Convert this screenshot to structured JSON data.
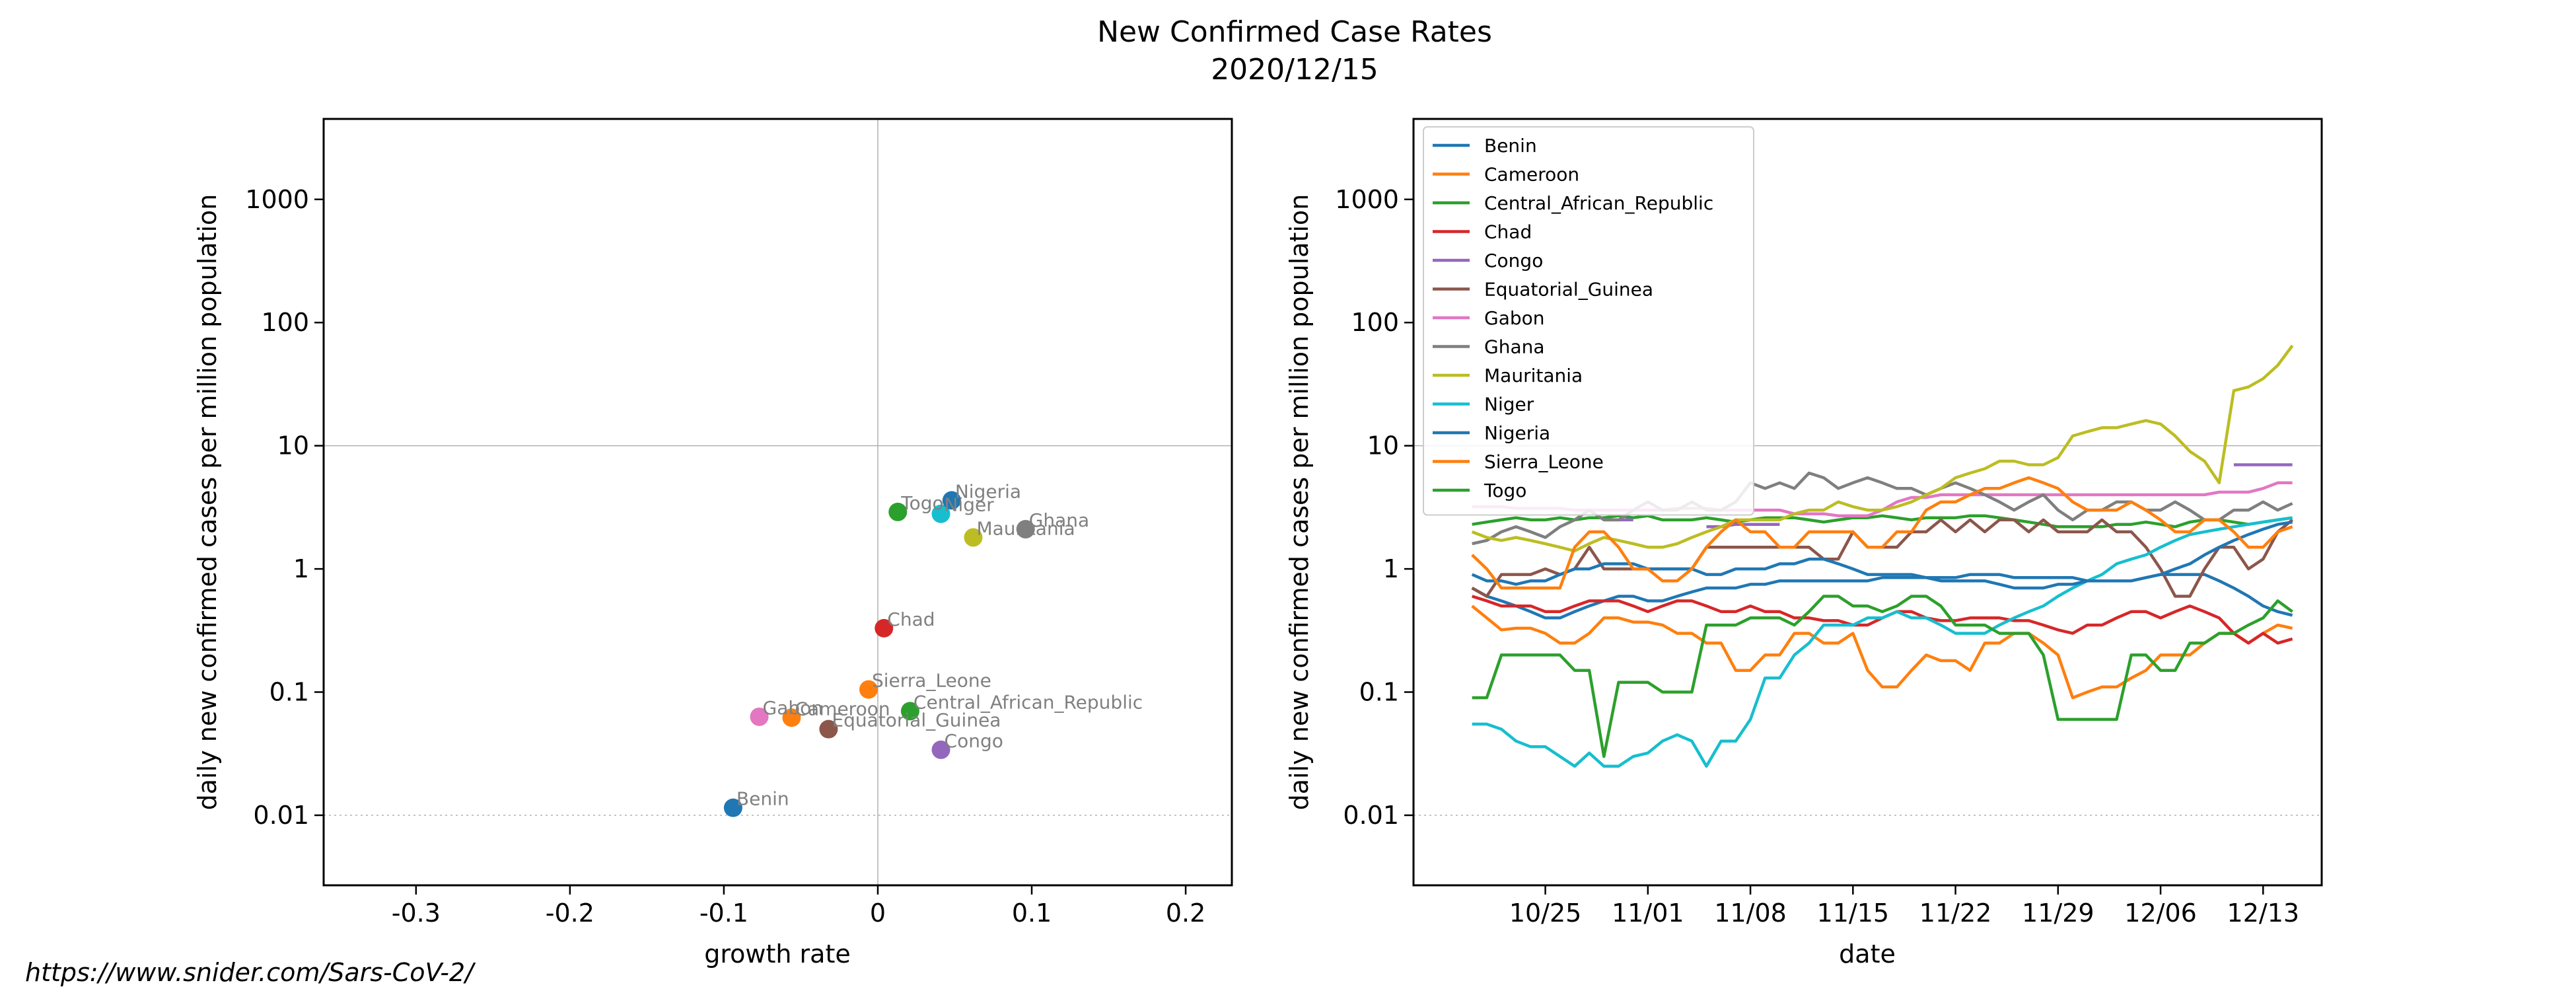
{
  "figure": {
    "title_line1": "New Confirmed Case Rates",
    "title_line2": "2020/12/15",
    "footer": "https://www.snider.com/Sars-CoV-2/"
  },
  "chart_data": [
    {
      "type": "scatter",
      "xlabel": "growth rate",
      "ylabel": "daily new confirmed cases per million population",
      "xlim": [
        -0.36,
        0.23
      ],
      "ylim": [
        0.0027,
        4500
      ],
      "yscale": "log",
      "xticks": [
        -0.3,
        -0.2,
        -0.1,
        0,
        0.1,
        0.2
      ],
      "xtick_labels": [
        "-0.3",
        "-0.2",
        "-0.1",
        "0",
        "0.1",
        "0.2"
      ],
      "yticks": [
        0.01,
        0.1,
        1,
        10,
        100,
        1000
      ],
      "ytick_labels": [
        "0.01",
        "0.1",
        "1",
        "10",
        "100",
        "1000"
      ],
      "reference_lines": {
        "x": 0,
        "y": 10,
        "y_dotted": 0.01
      },
      "points": [
        {
          "label": "Benin",
          "x": -0.094,
          "y": 0.0115,
          "color": "#1f77b4"
        },
        {
          "label": "Cameroon",
          "x": -0.056,
          "y": 0.062,
          "color": "#ff7f0e"
        },
        {
          "label": "Central_African_Republic",
          "x": 0.021,
          "y": 0.07,
          "color": "#2ca02c"
        },
        {
          "label": "Chad",
          "x": 0.004,
          "y": 0.33,
          "color": "#d62728"
        },
        {
          "label": "Congo",
          "x": 0.041,
          "y": 0.034,
          "color": "#9467bd"
        },
        {
          "label": "Equatorial_Guinea",
          "x": -0.032,
          "y": 0.05,
          "color": "#8c564b"
        },
        {
          "label": "Gabon",
          "x": -0.077,
          "y": 0.063,
          "color": "#e377c2"
        },
        {
          "label": "Ghana",
          "x": 0.096,
          "y": 2.1,
          "color": "#7f7f7f"
        },
        {
          "label": "Mauritania",
          "x": 0.062,
          "y": 1.8,
          "color": "#bcbd22"
        },
        {
          "label": "Niger",
          "x": 0.041,
          "y": 2.8,
          "color": "#17becf"
        },
        {
          "label": "Nigeria",
          "x": 0.048,
          "y": 3.6,
          "color": "#1f77b4"
        },
        {
          "label": "Sierra_Leone",
          "x": -0.006,
          "y": 0.105,
          "color": "#ff7f0e"
        },
        {
          "label": "Togo",
          "x": 0.013,
          "y": 2.9,
          "color": "#2ca02c"
        }
      ]
    },
    {
      "type": "line",
      "xlabel": "date",
      "ylabel": "daily new confirmed cases per million population",
      "x_start": "2020-10-20",
      "x_end": "2020-12-15",
      "xlim": [
        "2020-10-16",
        "2020-12-17"
      ],
      "ylim": [
        0.0027,
        4500
      ],
      "yscale": "log",
      "xticks": [
        "2020-10-25",
        "2020-11-01",
        "2020-11-08",
        "2020-11-15",
        "2020-11-22",
        "2020-11-29",
        "2020-12-06",
        "2020-12-13"
      ],
      "xtick_labels": [
        "10/25",
        "11/01",
        "11/08",
        "11/15",
        "11/22",
        "11/29",
        "12/06",
        "12/13"
      ],
      "yticks": [
        0.01,
        0.1,
        1,
        10,
        100,
        1000
      ],
      "ytick_labels": [
        "0.01",
        "0.1",
        "1",
        "10",
        "100",
        "1000"
      ],
      "reference_lines": {
        "y": 10,
        "y_dotted": 0.01
      },
      "legend": {
        "placement": "upper-left"
      },
      "series": [
        {
          "name": "Benin",
          "color": "#1f77b4",
          "values": [
            0.7,
            0.6,
            0.55,
            0.5,
            0.45,
            0.4,
            0.4,
            0.45,
            0.5,
            0.55,
            0.6,
            0.6,
            0.55,
            0.55,
            0.6,
            0.65,
            0.7,
            0.7,
            0.7,
            0.75,
            0.75,
            0.8,
            0.8,
            0.8,
            0.8,
            0.8,
            0.8,
            0.8,
            0.85,
            0.85,
            0.85,
            0.85,
            0.85,
            0.85,
            0.9,
            0.9,
            0.9,
            0.85,
            0.85,
            0.85,
            0.85,
            0.85,
            0.8,
            0.8,
            0.8,
            0.8,
            0.85,
            0.9,
            0.9,
            0.9,
            0.9,
            0.8,
            0.7,
            0.6,
            0.5,
            0.45,
            0.42
          ]
        },
        {
          "name": "Cameroon",
          "color": "#ff7f0e",
          "values": [
            0.5,
            0.4,
            0.32,
            0.33,
            0.33,
            0.3,
            0.25,
            0.25,
            0.3,
            0.4,
            0.4,
            0.37,
            0.37,
            0.35,
            0.3,
            0.3,
            0.25,
            0.25,
            0.15,
            0.15,
            0.2,
            0.2,
            0.3,
            0.3,
            0.25,
            0.25,
            0.3,
            0.15,
            0.11,
            0.11,
            0.15,
            0.2,
            0.18,
            0.18,
            0.15,
            0.25,
            0.25,
            0.3,
            0.3,
            0.25,
            0.2,
            0.09,
            0.1,
            0.11,
            0.11,
            0.13,
            0.15,
            0.2,
            0.2,
            0.2,
            0.25,
            0.3,
            0.3,
            0.25,
            0.3,
            0.35,
            0.33
          ]
        },
        {
          "name": "Central_African_Republic",
          "color": "#2ca02c",
          "values": [
            2.3,
            2.4,
            2.5,
            2.6,
            2.5,
            2.5,
            2.6,
            2.5,
            2.6,
            2.6,
            2.7,
            2.6,
            2.7,
            2.5,
            2.5,
            2.5,
            2.6,
            2.5,
            2.4,
            2.5,
            2.6,
            2.6,
            2.6,
            2.5,
            2.4,
            2.5,
            2.6,
            2.6,
            2.7,
            2.6,
            2.5,
            2.6,
            2.6,
            2.6,
            2.7,
            2.7,
            2.6,
            2.5,
            2.4,
            2.3,
            2.2,
            2.2,
            2.2,
            2.2,
            2.3,
            2.3,
            2.4,
            2.3,
            2.2,
            2.4,
            2.5,
            2.5,
            2.4,
            2.3,
            2.4,
            2.5,
            2.6
          ]
        },
        {
          "name": "Chad",
          "color": "#d62728",
          "values": [
            0.6,
            0.55,
            0.5,
            0.5,
            0.5,
            0.45,
            0.45,
            0.5,
            0.55,
            0.55,
            0.55,
            0.5,
            0.45,
            0.5,
            0.55,
            0.55,
            0.5,
            0.45,
            0.45,
            0.5,
            0.45,
            0.45,
            0.4,
            0.4,
            0.38,
            0.38,
            0.35,
            0.35,
            0.4,
            0.45,
            0.45,
            0.4,
            0.38,
            0.38,
            0.4,
            0.4,
            0.4,
            0.38,
            0.38,
            0.35,
            0.32,
            0.3,
            0.35,
            0.35,
            0.4,
            0.45,
            0.45,
            0.4,
            0.45,
            0.5,
            0.45,
            0.4,
            0.3,
            0.25,
            0.3,
            0.25,
            0.27
          ]
        },
        {
          "name": "Congo",
          "color": "#9467bd",
          "values": [
            null,
            null,
            null,
            null,
            null,
            null,
            null,
            null,
            null,
            2.5,
            2.5,
            2.5,
            null,
            null,
            null,
            null,
            2.2,
            2.2,
            2.3,
            2.3,
            2.3,
            2.3,
            null,
            null,
            null,
            null,
            null,
            null,
            null,
            null,
            null,
            null,
            null,
            null,
            null,
            null,
            null,
            null,
            null,
            null,
            null,
            null,
            null,
            null,
            null,
            null,
            null,
            null,
            null,
            null,
            null,
            null,
            7.0,
            7.0,
            7.0,
            7.0,
            7.0
          ]
        },
        {
          "name": "Equatorial_Guinea",
          "color": "#8c564b",
          "values": [
            0.7,
            0.6,
            0.9,
            0.9,
            0.9,
            1.0,
            0.9,
            1.0,
            1.5,
            1.0,
            1.0,
            1.0,
            1.0,
            1.0,
            1.0,
            1.0,
            1.5,
            1.5,
            1.5,
            1.5,
            1.5,
            1.5,
            1.5,
            1.5,
            1.2,
            1.2,
            2.0,
            1.5,
            1.5,
            1.5,
            2.0,
            2.0,
            2.5,
            2.0,
            2.5,
            2.0,
            2.5,
            2.5,
            2.0,
            2.5,
            2.0,
            2.0,
            2.0,
            2.5,
            2.0,
            2.0,
            1.5,
            1.0,
            0.6,
            0.6,
            1.0,
            1.5,
            1.5,
            1.0,
            1.2,
            2.0,
            2.5
          ]
        },
        {
          "name": "Gabon",
          "color": "#e377c2",
          "values": [
            3.2,
            3.2,
            3.2,
            3.1,
            3.1,
            3.1,
            3.1,
            3.0,
            3.0,
            3.0,
            3.0,
            3.0,
            3.0,
            3.0,
            3.1,
            3.1,
            3.1,
            3.0,
            3.0,
            3.0,
            3.0,
            3.0,
            2.8,
            2.8,
            2.8,
            2.7,
            2.7,
            2.7,
            3.0,
            3.5,
            3.8,
            3.8,
            4.0,
            4.0,
            4.0,
            4.0,
            4.0,
            4.0,
            4.0,
            4.0,
            4.0,
            4.0,
            4.0,
            4.0,
            4.0,
            4.0,
            4.0,
            4.0,
            4.0,
            4.0,
            4.0,
            4.2,
            4.2,
            4.2,
            4.5,
            5.0,
            5.0
          ]
        },
        {
          "name": "Ghana",
          "color": "#7f7f7f",
          "values": [
            1.6,
            1.7,
            2.0,
            2.2,
            2.0,
            1.8,
            2.2,
            2.5,
            3.0,
            2.5,
            2.5,
            3.0,
            3.5,
            3.0,
            3.0,
            3.5,
            3.0,
            3.0,
            3.5,
            5.0,
            4.5,
            5.0,
            4.5,
            6.0,
            5.5,
            4.5,
            5.0,
            5.5,
            5.0,
            4.5,
            4.5,
            4.0,
            4.5,
            5.0,
            4.5,
            4.0,
            3.5,
            3.0,
            3.5,
            4.0,
            3.0,
            2.5,
            3.0,
            3.0,
            3.5,
            3.5,
            3.0,
            3.0,
            3.5,
            3.0,
            2.5,
            2.5,
            3.0,
            3.0,
            3.5,
            3.0,
            3.4
          ]
        },
        {
          "name": "Mauritania",
          "color": "#bcbd22",
          "values": [
            2.0,
            1.8,
            1.7,
            1.8,
            1.7,
            1.6,
            1.5,
            1.4,
            1.6,
            1.8,
            1.7,
            1.6,
            1.5,
            1.5,
            1.6,
            1.8,
            2.0,
            2.2,
            2.5,
            2.5,
            2.5,
            2.5,
            2.8,
            3.0,
            3.0,
            3.5,
            3.2,
            3.0,
            3.0,
            3.2,
            3.5,
            4.0,
            4.5,
            5.5,
            6.0,
            6.5,
            7.5,
            7.5,
            7.0,
            7.0,
            8.0,
            12.0,
            13.0,
            14.0,
            14.0,
            15.0,
            16.0,
            15.0,
            12.0,
            9.0,
            7.5,
            5.0,
            28.0,
            30.0,
            35.0,
            45.0,
            65.0
          ]
        },
        {
          "name": "Niger",
          "color": "#17becf",
          "values": [
            0.055,
            0.055,
            0.05,
            0.04,
            0.036,
            0.036,
            0.03,
            0.025,
            0.032,
            0.025,
            0.025,
            0.03,
            0.032,
            0.04,
            0.045,
            0.04,
            0.025,
            0.04,
            0.04,
            0.06,
            0.13,
            0.13,
            0.2,
            0.25,
            0.35,
            0.35,
            0.35,
            0.4,
            0.4,
            0.45,
            0.4,
            0.4,
            0.35,
            0.3,
            0.3,
            0.3,
            0.35,
            0.4,
            0.45,
            0.5,
            0.6,
            0.7,
            0.8,
            0.9,
            1.1,
            1.2,
            1.3,
            1.5,
            1.7,
            1.9,
            2.0,
            2.1,
            2.2,
            2.3,
            2.4,
            2.5,
            2.6
          ]
        },
        {
          "name": "Nigeria",
          "color": "#1f77b4",
          "values": [
            0.9,
            0.8,
            0.8,
            0.75,
            0.8,
            0.8,
            0.9,
            1.0,
            1.0,
            1.1,
            1.1,
            1.1,
            1.0,
            1.0,
            1.0,
            1.0,
            0.9,
            0.9,
            1.0,
            1.0,
            1.0,
            1.1,
            1.1,
            1.2,
            1.2,
            1.1,
            1.0,
            0.9,
            0.9,
            0.9,
            0.9,
            0.85,
            0.8,
            0.8,
            0.8,
            0.8,
            0.75,
            0.7,
            0.7,
            0.7,
            0.75,
            0.75,
            0.8,
            0.8,
            0.8,
            0.8,
            0.85,
            0.9,
            1.0,
            1.1,
            1.3,
            1.5,
            1.7,
            1.9,
            2.1,
            2.3,
            2.4
          ]
        },
        {
          "name": "Sierra_Leone",
          "color": "#ff7f0e",
          "values": [
            1.3,
            1.0,
            0.7,
            0.7,
            0.7,
            0.7,
            0.7,
            1.5,
            2.0,
            2.0,
            1.5,
            1.0,
            1.0,
            0.8,
            0.8,
            1.0,
            1.5,
            2.0,
            2.5,
            2.0,
            2.0,
            1.5,
            1.5,
            2.0,
            2.0,
            2.0,
            2.0,
            1.5,
            1.5,
            2.0,
            2.0,
            3.0,
            3.5,
            3.5,
            4.0,
            4.5,
            4.5,
            5.0,
            5.5,
            5.0,
            4.5,
            3.5,
            3.0,
            3.0,
            3.0,
            3.5,
            3.0,
            2.5,
            2.0,
            2.0,
            2.5,
            2.5,
            2.0,
            1.5,
            1.5,
            2.0,
            2.2
          ]
        },
        {
          "name": "Togo",
          "color": "#2ca02c",
          "values": [
            0.09,
            0.09,
            0.2,
            0.2,
            0.2,
            0.2,
            0.2,
            0.15,
            0.15,
            0.03,
            0.12,
            0.12,
            0.12,
            0.1,
            0.1,
            0.1,
            0.35,
            0.35,
            0.35,
            0.4,
            0.4,
            0.4,
            0.35,
            0.45,
            0.6,
            0.6,
            0.5,
            0.5,
            0.45,
            0.5,
            0.6,
            0.6,
            0.5,
            0.35,
            0.35,
            0.35,
            0.3,
            0.3,
            0.3,
            0.2,
            0.06,
            0.06,
            0.06,
            0.06,
            0.06,
            0.2,
            0.2,
            0.15,
            0.15,
            0.25,
            0.25,
            0.3,
            0.3,
            0.35,
            0.4,
            0.55,
            0.45
          ]
        }
      ]
    }
  ]
}
